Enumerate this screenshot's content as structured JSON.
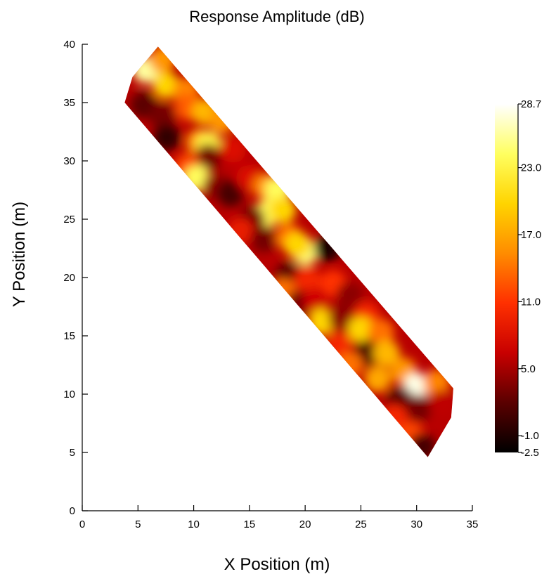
{
  "chart_data": {
    "type": "heatmap",
    "title": "Response Amplitude (dB)",
    "xlabel": "X Position (m)",
    "ylabel": "Y Position (m)",
    "xlim": [
      0,
      35
    ],
    "ylim": [
      0,
      40
    ],
    "x_ticks": [
      0,
      5,
      10,
      15,
      20,
      25,
      30,
      35
    ],
    "y_ticks": [
      0,
      5,
      10,
      15,
      20,
      25,
      30,
      35,
      40
    ],
    "grid": false,
    "colormap": "hot",
    "colormap_stops": [
      "#000000",
      "#5a0000",
      "#c80000",
      "#ff3000",
      "#ff8c00",
      "#ffd400",
      "#ffff60",
      "#ffffff"
    ],
    "colorbar": {
      "min": -2.5,
      "max": 28.7,
      "ticks": [
        28.7,
        23.0,
        17.0,
        11.0,
        5.0,
        -1.0,
        -2.5
      ],
      "tick_labels": [
        "28.7",
        "23.0",
        "17.0",
        "11.0",
        "5.0",
        "-1.0",
        "-2.5"
      ],
      "placement": "right"
    },
    "region_outline": [
      [
        6.8,
        39.8
      ],
      [
        33.3,
        10.5
      ],
      [
        33.1,
        8.0
      ],
      [
        31.0,
        4.6
      ],
      [
        3.8,
        35.0
      ],
      [
        4.5,
        37.2
      ]
    ],
    "values": [
      {
        "x": 5.7,
        "y": 37.8,
        "v": 26
      },
      {
        "x": 7.5,
        "y": 36.5,
        "v": 20
      },
      {
        "x": 7.2,
        "y": 38.7,
        "v": 16
      },
      {
        "x": 9.3,
        "y": 36.0,
        "v": 15
      },
      {
        "x": 5.5,
        "y": 34.8,
        "v": 2
      },
      {
        "x": 7.2,
        "y": 33.8,
        "v": 3
      },
      {
        "x": 7.6,
        "y": 32.0,
        "v": 0
      },
      {
        "x": 9.5,
        "y": 34.6,
        "v": 13
      },
      {
        "x": 11.0,
        "y": 34.2,
        "v": 18
      },
      {
        "x": 10.5,
        "y": 31.6,
        "v": 16
      },
      {
        "x": 11.3,
        "y": 31.4,
        "v": 23
      },
      {
        "x": 12.5,
        "y": 33.5,
        "v": 16
      },
      {
        "x": 11.3,
        "y": 30.3,
        "v": 3
      },
      {
        "x": 13.5,
        "y": 31.0,
        "v": 8
      },
      {
        "x": 9.4,
        "y": 29.5,
        "v": 12
      },
      {
        "x": 10.3,
        "y": 28.5,
        "v": 24
      },
      {
        "x": 12.0,
        "y": 27.8,
        "v": 4
      },
      {
        "x": 13.3,
        "y": 27.2,
        "v": 1
      },
      {
        "x": 15.0,
        "y": 28.5,
        "v": 8
      },
      {
        "x": 16.5,
        "y": 27.8,
        "v": 15
      },
      {
        "x": 17.5,
        "y": 27.5,
        "v": 24
      },
      {
        "x": 16.6,
        "y": 25.5,
        "v": 24
      },
      {
        "x": 18.0,
        "y": 25.8,
        "v": 20
      },
      {
        "x": 15.2,
        "y": 25.0,
        "v": 3
      },
      {
        "x": 14.2,
        "y": 24.0,
        "v": 9
      },
      {
        "x": 16.3,
        "y": 23.3,
        "v": 3
      },
      {
        "x": 18.5,
        "y": 23.5,
        "v": 14
      },
      {
        "x": 20.0,
        "y": 22.2,
        "v": 25
      },
      {
        "x": 19.3,
        "y": 22.8,
        "v": 20
      },
      {
        "x": 22.0,
        "y": 22.5,
        "v": -1
      },
      {
        "x": 18.5,
        "y": 20.2,
        "v": 2
      },
      {
        "x": 20.2,
        "y": 19.8,
        "v": 10
      },
      {
        "x": 22.5,
        "y": 19.5,
        "v": 11
      },
      {
        "x": 18.0,
        "y": 18.8,
        "v": 14
      },
      {
        "x": 19.5,
        "y": 17.8,
        "v": 3
      },
      {
        "x": 21.0,
        "y": 18.0,
        "v": 7
      },
      {
        "x": 24.0,
        "y": 18.5,
        "v": 4
      },
      {
        "x": 21.5,
        "y": 16.2,
        "v": 20
      },
      {
        "x": 23.3,
        "y": 16.5,
        "v": 4
      },
      {
        "x": 25.5,
        "y": 16.8,
        "v": 10
      },
      {
        "x": 25.0,
        "y": 15.5,
        "v": 20
      },
      {
        "x": 26.8,
        "y": 15.3,
        "v": 14
      },
      {
        "x": 23.0,
        "y": 14.2,
        "v": 10
      },
      {
        "x": 25.5,
        "y": 13.5,
        "v": 1
      },
      {
        "x": 27.3,
        "y": 13.5,
        "v": 18
      },
      {
        "x": 24.0,
        "y": 12.5,
        "v": 14
      },
      {
        "x": 26.5,
        "y": 11.3,
        "v": 17
      },
      {
        "x": 28.8,
        "y": 12.0,
        "v": 16
      },
      {
        "x": 30.0,
        "y": 10.7,
        "v": 28
      },
      {
        "x": 31.8,
        "y": 11.0,
        "v": 15
      },
      {
        "x": 28.5,
        "y": 9.5,
        "v": 2
      },
      {
        "x": 30.2,
        "y": 8.8,
        "v": 3
      },
      {
        "x": 32.3,
        "y": 9.2,
        "v": 6
      },
      {
        "x": 28.0,
        "y": 8.0,
        "v": 10
      },
      {
        "x": 29.5,
        "y": 6.5,
        "v": 12
      },
      {
        "x": 30.5,
        "y": 5.5,
        "v": 1
      }
    ]
  }
}
